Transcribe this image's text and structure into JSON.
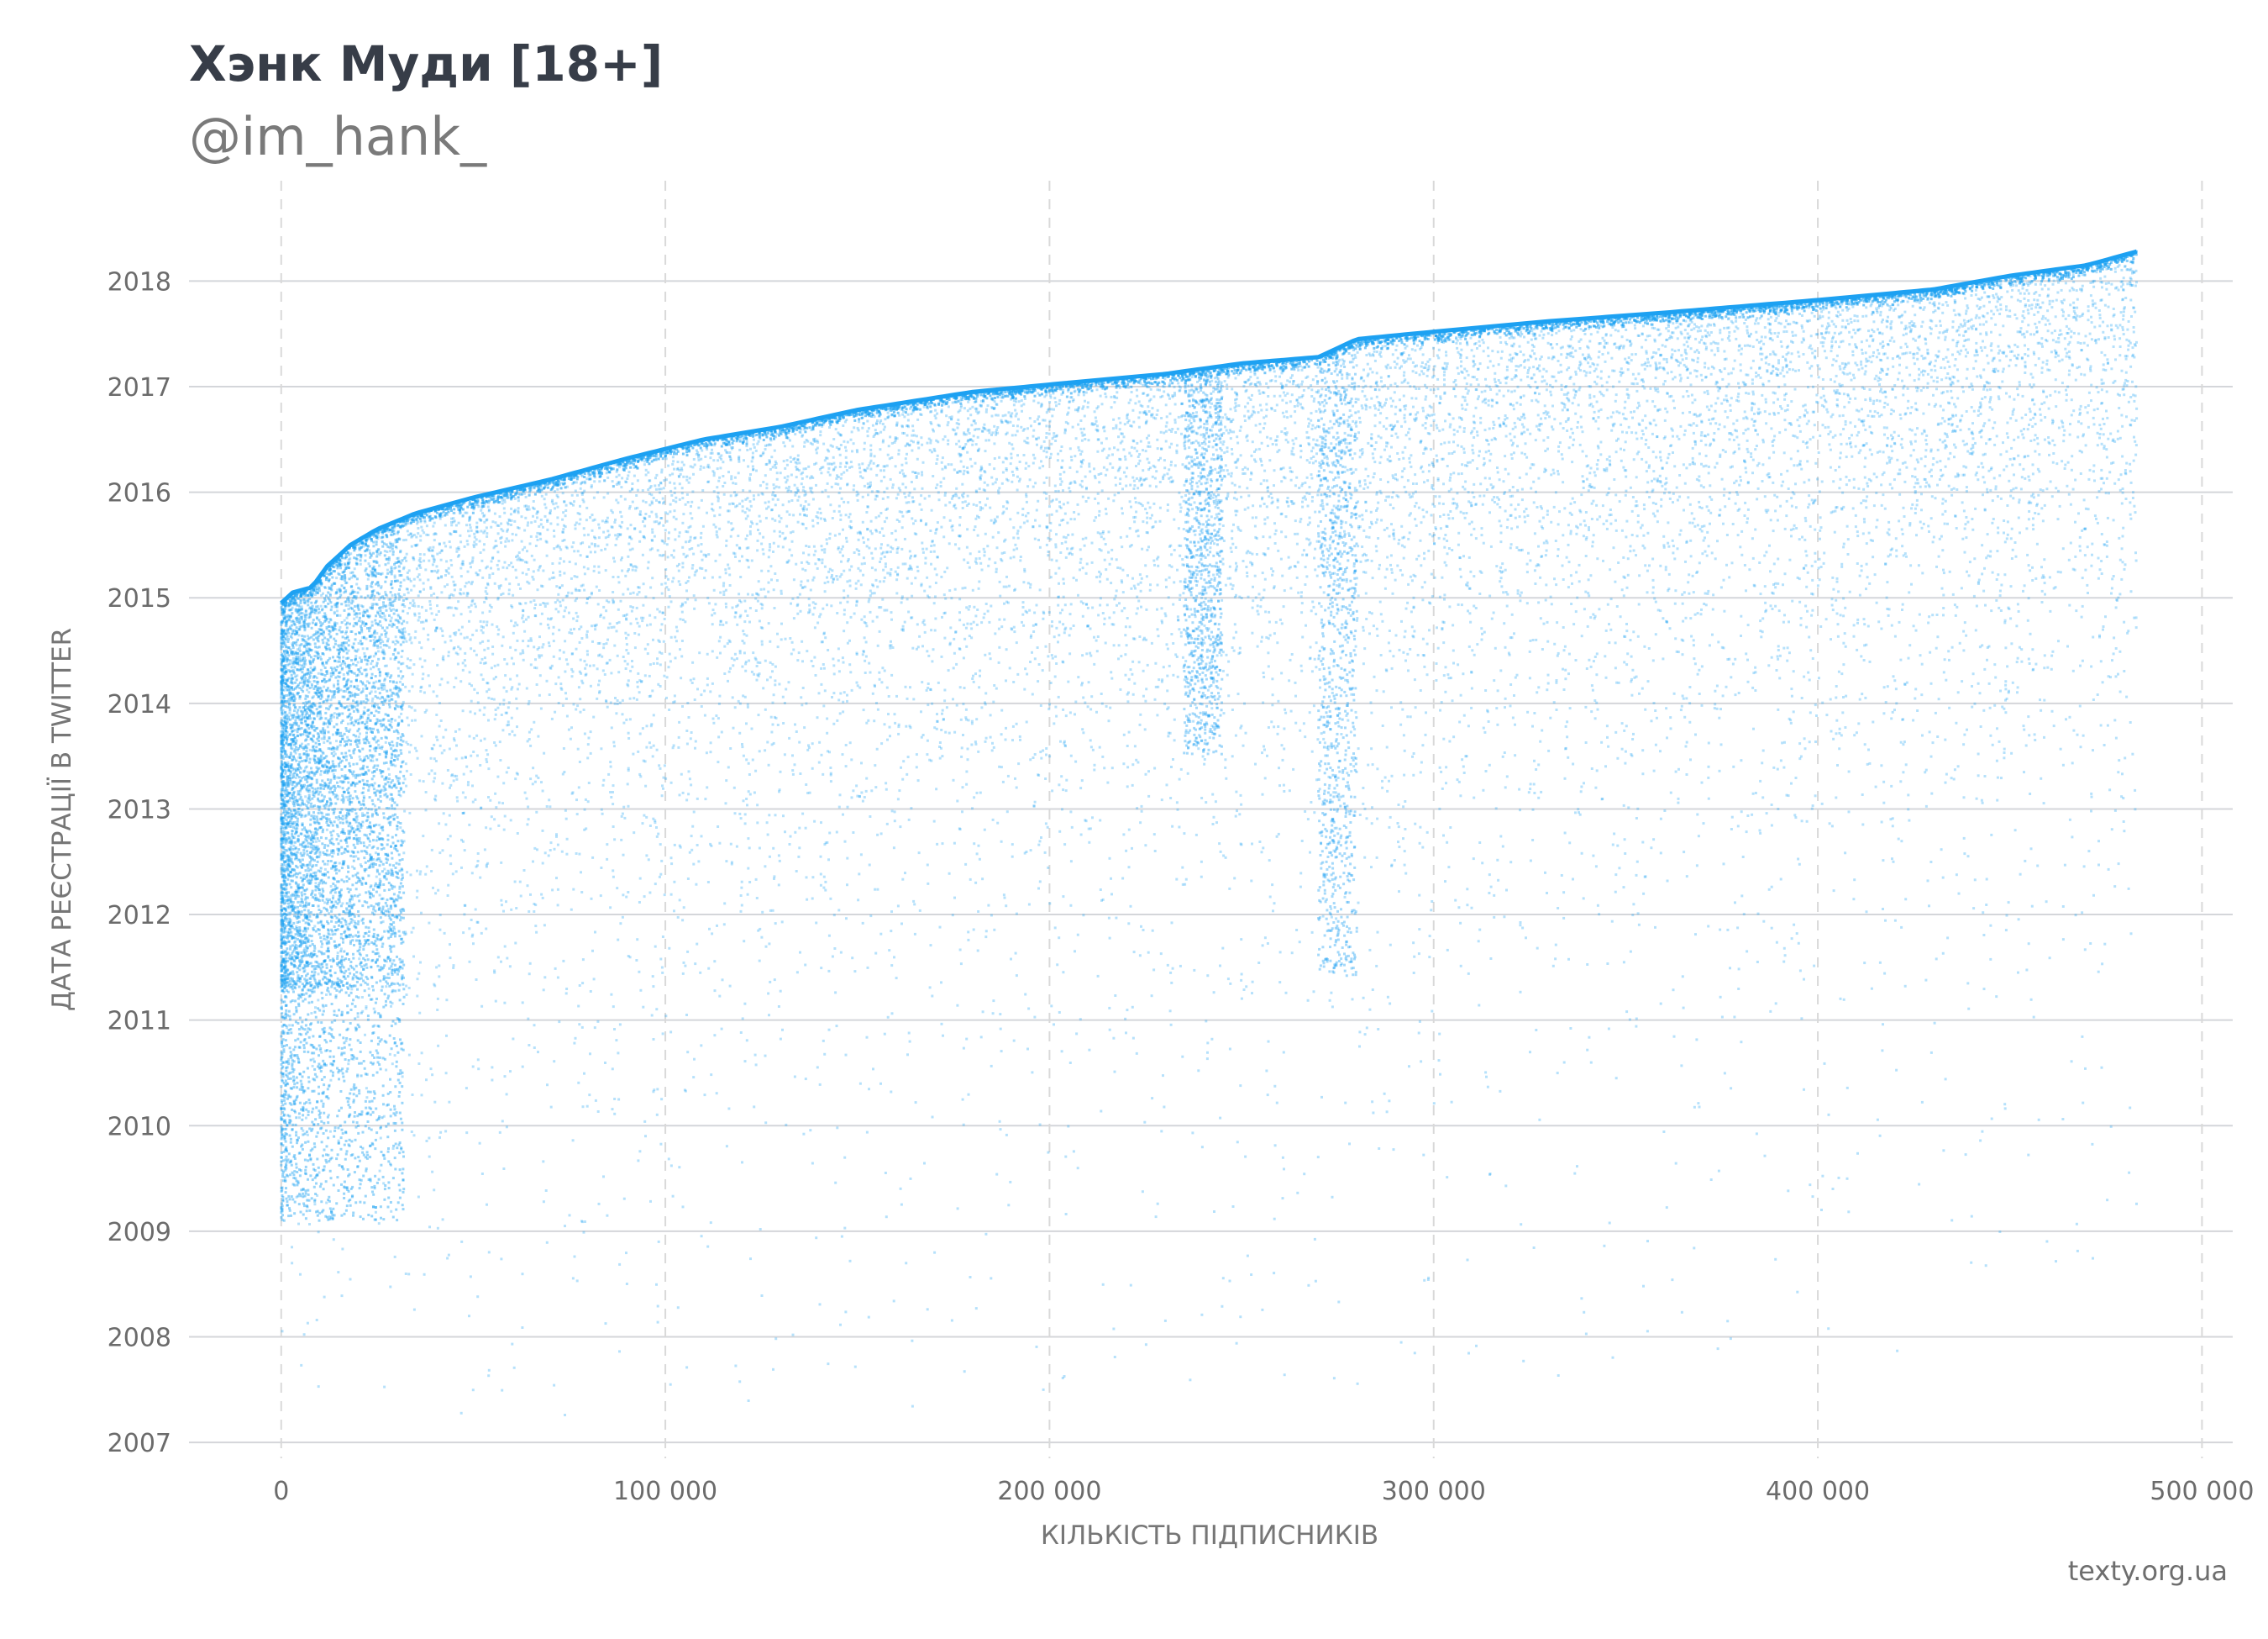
{
  "header": {
    "title": "Хэнк Муди [18+]",
    "subtitle": "@im_hank_"
  },
  "footer": {
    "source": "texty.org.ua"
  },
  "chart_data": {
    "type": "scatter",
    "title": "Хэнк Муди [18+]",
    "subtitle": "@im_hank_",
    "xlabel": "КІЛЬКІСТЬ ПІДПИСНИКІВ",
    "ylabel": "ДАТА РЕЄСТРАЦІЇ В TWITTER",
    "xlim": [
      -24000,
      508000
    ],
    "ylim": [
      2006.85,
      2018.95
    ],
    "x_ticks": [
      0,
      100000,
      200000,
      300000,
      400000,
      500000
    ],
    "x_tick_labels": [
      "0",
      "100 000",
      "200 000",
      "300 000",
      "400 000",
      "500 000"
    ],
    "y_ticks": [
      2007,
      2008,
      2009,
      2010,
      2011,
      2012,
      2013,
      2014,
      2015,
      2016,
      2017,
      2018
    ],
    "y_tick_labels": [
      "2007",
      "2008",
      "2009",
      "2010",
      "2011",
      "2012",
      "2013",
      "2014",
      "2015",
      "2016",
      "2017",
      "2018"
    ],
    "grid": {
      "horizontal": "solid",
      "vertical": "dashed"
    },
    "point_color": "#1da1f2",
    "total_points_approx": 483000,
    "upper_envelope": {
      "x": [
        0,
        3000,
        8000,
        12000,
        18000,
        25000,
        35000,
        50000,
        70000,
        90000,
        110000,
        130000,
        150000,
        180000,
        200000,
        230000,
        250000,
        270000,
        280000,
        300000,
        330000,
        360000,
        400000,
        430000,
        450000,
        470000,
        483000
      ],
      "y": [
        2014.95,
        2015.05,
        2015.1,
        2015.3,
        2015.5,
        2015.65,
        2015.8,
        2015.95,
        2016.12,
        2016.32,
        2016.5,
        2016.62,
        2016.78,
        2016.95,
        2017.02,
        2017.12,
        2017.22,
        2017.28,
        2017.45,
        2017.52,
        2017.62,
        2017.7,
        2017.82,
        2017.92,
        2018.05,
        2018.15,
        2018.28
      ]
    },
    "density_bands": [
      {
        "x_range": [
          0,
          30000
        ],
        "y_range": [
          2011.3,
          2015.0
        ],
        "density": "very high"
      },
      {
        "x_range": [
          235000,
          245000
        ],
        "y_range": [
          2013.5,
          2017.2
        ],
        "density": "high"
      },
      {
        "x_range": [
          270000,
          280000
        ],
        "y_range": [
          2011.4,
          2017.4
        ],
        "density": "high"
      }
    ]
  }
}
